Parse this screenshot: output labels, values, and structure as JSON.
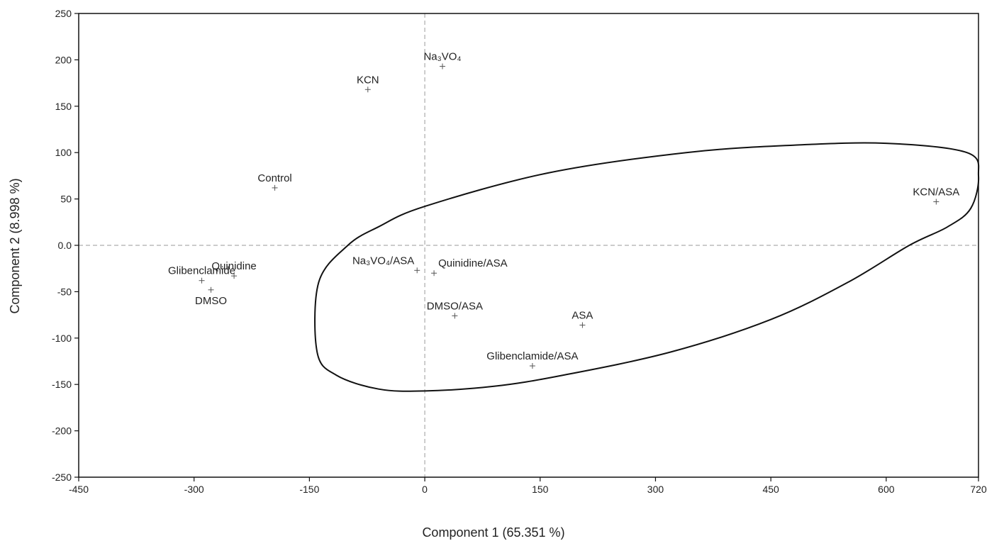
{
  "chart_data": {
    "type": "scatter",
    "xlabel": "Component 1 (65.351 %)",
    "ylabel": "Component 2 (8.998 %)",
    "xlim": [
      -450,
      720
    ],
    "ylim": [
      -250,
      250
    ],
    "x_ticks": [
      -450,
      -300,
      -150,
      0,
      150,
      300,
      450,
      600,
      720
    ],
    "y_ticks": [
      250,
      200,
      150,
      100,
      50,
      0,
      -50,
      -100,
      -150,
      -200,
      -250
    ],
    "x_tick_labels": [
      "-450",
      "-300",
      "-150",
      "0",
      "150",
      "300",
      "450",
      "600",
      "720"
    ],
    "y_tick_labels": [
      "250",
      "200",
      "150",
      "100",
      "50",
      "0.0",
      "-50",
      "-100",
      "-150",
      "-200",
      "-250"
    ],
    "zero_lines": "dashed",
    "marker": "+",
    "points": [
      {
        "label": "Na₃VO₄",
        "x": 23,
        "y": 193,
        "label_pos": "above"
      },
      {
        "label": "KCN",
        "x": -74,
        "y": 168,
        "label_pos": "above"
      },
      {
        "label": "Control",
        "x": -195,
        "y": 62,
        "label_pos": "above"
      },
      {
        "label": "KCN/ASA",
        "x": 665,
        "y": 47,
        "label_pos": "above"
      },
      {
        "label": "Glibenclamide",
        "x": -290,
        "y": -38,
        "label_pos": "above"
      },
      {
        "label": "Quinidine",
        "x": -248,
        "y": -33,
        "label_pos": "above"
      },
      {
        "label": "DMSO",
        "x": -278,
        "y": -48,
        "label_pos": "below"
      },
      {
        "label": "Na₃VO₄/ASA",
        "x": -10,
        "y": -27,
        "label_pos": "above-left"
      },
      {
        "label": "Quinidine/ASA",
        "x": 12,
        "y": -30,
        "label_pos": "above-right"
      },
      {
        "label": "DMSO/ASA",
        "x": 39,
        "y": -76,
        "label_pos": "above"
      },
      {
        "label": "ASA",
        "x": 205,
        "y": -86,
        "label_pos": "above"
      },
      {
        "label": "Glibenclamide/ASA",
        "x": 140,
        "y": -130,
        "label_pos": "above"
      }
    ],
    "enclosure": {
      "shape": "closed-curve",
      "points": [
        [
          0,
          42
        ],
        [
          160,
          78
        ],
        [
          340,
          100
        ],
        [
          480,
          108
        ],
        [
          600,
          110
        ],
        [
          705,
          100
        ],
        [
          720,
          75
        ],
        [
          710,
          40
        ],
        [
          680,
          20
        ],
        [
          630,
          0
        ],
        [
          550,
          -40
        ],
        [
          450,
          -80
        ],
        [
          320,
          -115
        ],
        [
          180,
          -140
        ],
        [
          90,
          -152
        ],
        [
          0,
          -157
        ],
        [
          -60,
          -155
        ],
        [
          -115,
          -140
        ],
        [
          -140,
          -115
        ],
        [
          -138,
          -40
        ],
        [
          -100,
          0
        ],
        [
          -60,
          20
        ]
      ]
    }
  }
}
